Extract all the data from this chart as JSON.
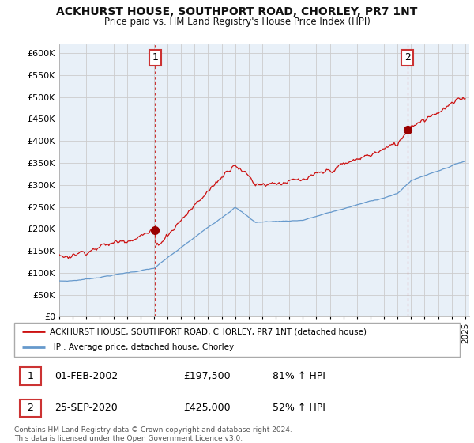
{
  "title": "ACKHURST HOUSE, SOUTHPORT ROAD, CHORLEY, PR7 1NT",
  "subtitle": "Price paid vs. HM Land Registry's House Price Index (HPI)",
  "ylim": [
    0,
    620000
  ],
  "yticks": [
    0,
    50000,
    100000,
    150000,
    200000,
    250000,
    300000,
    350000,
    400000,
    450000,
    500000,
    550000,
    600000
  ],
  "ytick_labels": [
    "£0",
    "£50K",
    "£100K",
    "£150K",
    "£200K",
    "£250K",
    "£300K",
    "£350K",
    "£400K",
    "£450K",
    "£500K",
    "£550K",
    "£600K"
  ],
  "hpi_color": "#6699cc",
  "price_color": "#cc1111",
  "marker_color": "#990000",
  "sale1_year": 2002.08,
  "sale1_price": 197500,
  "sale2_year": 2020.73,
  "sale2_price": 425000,
  "vline_color": "#cc3333",
  "legend_house": "ACKHURST HOUSE, SOUTHPORT ROAD, CHORLEY, PR7 1NT (detached house)",
  "legend_hpi": "HPI: Average price, detached house, Chorley",
  "table_row1": [
    "1",
    "01-FEB-2002",
    "£197,500",
    "81% ↑ HPI"
  ],
  "table_row2": [
    "2",
    "25-SEP-2020",
    "£425,000",
    "52% ↑ HPI"
  ],
  "footer": "Contains HM Land Registry data © Crown copyright and database right 2024.\nThis data is licensed under the Open Government Licence v3.0.",
  "plot_bg_color": "#e8f0f8",
  "background_color": "#ffffff"
}
